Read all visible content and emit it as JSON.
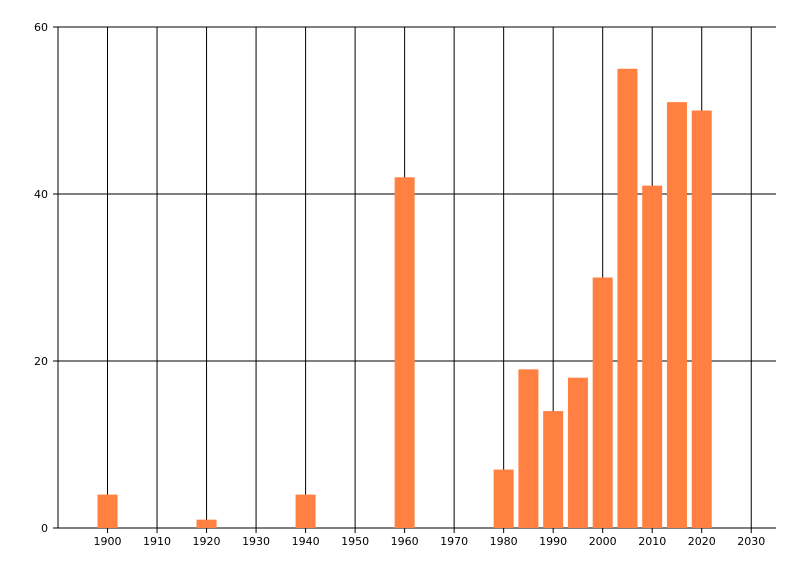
{
  "chart_data": {
    "type": "bar",
    "x": [
      1900,
      1920,
      1940,
      1960,
      1980,
      1985,
      1990,
      1995,
      2000,
      2005,
      2010,
      2015,
      2020
    ],
    "values": [
      4,
      1,
      4,
      42,
      7,
      19,
      14,
      18,
      30,
      55,
      41,
      51,
      50
    ],
    "color": "#ff8040",
    "xlim": [
      1890,
      2035
    ],
    "xticks": [
      1900,
      1910,
      1920,
      1930,
      1940,
      1950,
      1960,
      1970,
      1980,
      1990,
      2000,
      2010,
      2020,
      2030
    ],
    "ylim": [
      0,
      60
    ],
    "yticks": [
      0,
      20,
      40,
      60
    ],
    "grid": true
  }
}
